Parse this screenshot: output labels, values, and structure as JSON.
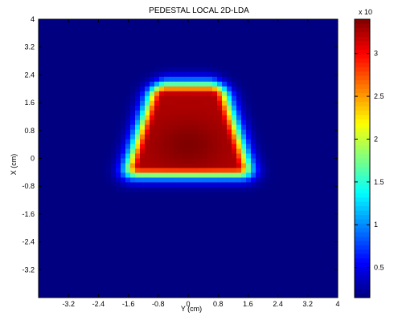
{
  "chart_data": {
    "type": "heatmap",
    "title": "PEDESTAL LOCAL 2D-LDA",
    "xlabel": "Y (cm)",
    "ylabel": "X (cm)",
    "xlim": [
      -4,
      4
    ],
    "ylim": [
      -4,
      4
    ],
    "x_ticks": [
      "-3.2",
      "-2.4",
      "-1.6",
      "-0.8",
      "0",
      "0.8",
      "1.6",
      "2.4",
      "3.2",
      "4"
    ],
    "y_ticks": [
      "4",
      "3.2",
      "2.4",
      "1.6",
      "0.8",
      "0",
      "-0.8",
      "-1.6",
      "-2.4",
      "-3.2"
    ],
    "colorbar": {
      "range": [
        0.15,
        3.4
      ],
      "ticks": [
        "3",
        "2.5",
        "2",
        "1.5",
        "1",
        "0.5"
      ],
      "exponent_label": "x 10",
      "colormap": "jet"
    },
    "peak": {
      "x": 0.0,
      "y": 0.4,
      "value": 3.4
    },
    "grid": false,
    "colors": {
      "background": "#ffffff",
      "frame": "#000000"
    }
  }
}
